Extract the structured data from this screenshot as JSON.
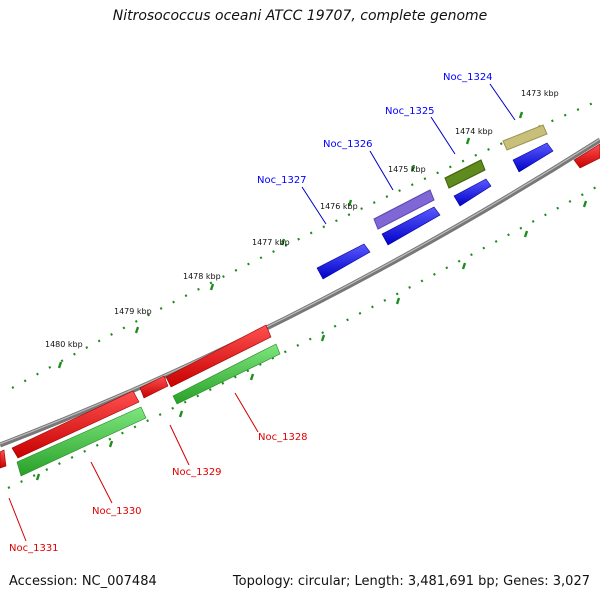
{
  "title": "Nitrosococcus oceani ATCC 19707, complete genome",
  "footer": {
    "accession": "Accession: NC_007484",
    "summary": "Topology: circular; Length: 3,481,691 bp; Genes: 3,027"
  },
  "ticks": [
    {
      "label": "1473 kbp"
    },
    {
      "label": "1474 kbp"
    },
    {
      "label": "1475 kbp"
    },
    {
      "label": "1476 kbp"
    },
    {
      "label": "1477 kbp"
    },
    {
      "label": "1478 kbp"
    },
    {
      "label": "1479 kbp"
    },
    {
      "label": "1480 kbp"
    }
  ],
  "genes_forward": [
    {
      "name": "Noc_1324",
      "color": "#0000ff"
    },
    {
      "name": "Noc_1325",
      "color": "#0000ff"
    },
    {
      "name": "Noc_1326",
      "color": "#0000ff"
    },
    {
      "name": "Noc_1327",
      "color": "#0000ff"
    }
  ],
  "genes_reverse": [
    {
      "name": "Noc_1328",
      "color": "#e00000"
    },
    {
      "name": "Noc_1329",
      "color": "#e00000"
    },
    {
      "name": "Noc_1330",
      "color": "#e00000"
    },
    {
      "name": "Noc_1331",
      "color": "#e00000"
    }
  ],
  "colors": {
    "backbone": "#8c8c8c",
    "forward_cds": "#0000ff",
    "reverse_cds": "#ff0000",
    "reverse_rna": "#3dcc3d",
    "feature_khaki": "#c8c07a",
    "feature_olive": "#5f8a1e",
    "feature_purple": "#7f68d6",
    "tick_green": "#1e8c1e"
  }
}
